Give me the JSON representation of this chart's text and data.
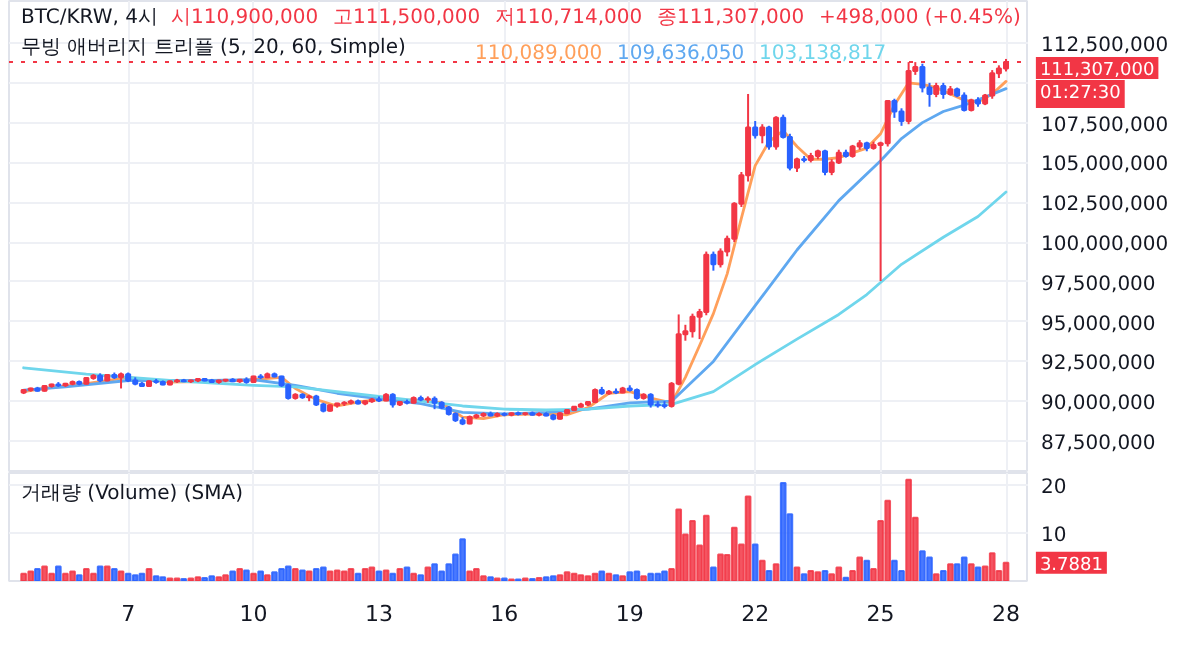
{
  "chart_data": [
    {
      "type": "candlestick",
      "x": [
        4.5,
        4.67,
        4.83,
        5,
        5.17,
        5.33,
        5.5,
        5.67,
        5.83,
        6,
        6.17,
        6.33,
        6.5,
        6.67,
        6.83,
        7,
        7.17,
        7.33,
        7.5,
        7.67,
        7.83,
        8,
        8.17,
        8.33,
        8.5,
        8.67,
        8.83,
        9,
        9.17,
        9.33,
        9.5,
        9.67,
        9.83,
        10,
        10.17,
        10.33,
        10.5,
        10.67,
        10.83,
        11,
        11.17,
        11.33,
        11.5,
        11.67,
        11.83,
        12,
        12.17,
        12.33,
        12.5,
        12.67,
        12.83,
        13,
        13.17,
        13.33,
        13.5,
        13.67,
        13.83,
        14,
        14.17,
        14.33,
        14.5,
        14.67,
        14.83,
        15,
        15.17,
        15.33,
        15.5,
        15.67,
        15.83,
        16,
        16.17,
        16.33,
        16.5,
        16.67,
        16.83,
        17,
        17.17,
        17.33,
        17.5,
        17.67,
        17.83,
        18,
        18.17,
        18.33,
        18.5,
        18.67,
        18.83,
        19,
        19.17,
        19.33,
        19.5,
        19.67,
        19.83,
        20,
        20.17,
        20.33,
        20.5,
        20.67,
        20.83,
        21,
        21.17,
        21.33,
        21.5,
        21.67,
        21.83,
        22,
        22.17,
        22.33,
        22.5,
        22.67,
        22.83,
        23,
        23.17,
        23.33,
        23.5,
        23.67,
        23.83,
        24,
        24.17,
        24.33,
        24.5,
        24.67,
        24.83,
        25,
        25.17,
        25.33,
        25.5,
        25.67,
        25.83,
        26,
        26.17,
        26.33,
        26.5,
        26.67,
        26.83,
        27,
        27.17,
        27.33,
        27.5,
        27.67,
        27.83,
        28
      ],
      "ohlc": [
        [
          90550000,
          90750000,
          90450000,
          90700000
        ],
        [
          90700000,
          90850000,
          90600000,
          90800000
        ],
        [
          90800000,
          90900000,
          90600000,
          90650000
        ],
        [
          90650000,
          91000000,
          90600000,
          90950000
        ],
        [
          90950000,
          91100000,
          90850000,
          91050000
        ],
        [
          91050000,
          91200000,
          90900000,
          91000000
        ],
        [
          91000000,
          91150000,
          90900000,
          91100000
        ],
        [
          91100000,
          91300000,
          91000000,
          91200000
        ],
        [
          91200000,
          91300000,
          91000000,
          91100000
        ],
        [
          91100000,
          91500000,
          91050000,
          91450000
        ],
        [
          91450000,
          91700000,
          91350000,
          91600000
        ],
        [
          91600000,
          91750000,
          91200000,
          91300000
        ],
        [
          91300000,
          91700000,
          91250000,
          91650000
        ],
        [
          91650000,
          91800000,
          91400000,
          91500000
        ],
        [
          91500000,
          91800000,
          90800000,
          91700000
        ],
        [
          91700000,
          91800000,
          91200000,
          91300000
        ],
        [
          91300000,
          91500000,
          91000000,
          91100000
        ],
        [
          91100000,
          91200000,
          90900000,
          90950000
        ],
        [
          90950000,
          91300000,
          90900000,
          91250000
        ],
        [
          91250000,
          91400000,
          91100000,
          91200000
        ],
        [
          91200000,
          91300000,
          91000000,
          91050000
        ],
        [
          91050000,
          91300000,
          91000000,
          91250000
        ],
        [
          91250000,
          91400000,
          91150000,
          91300000
        ],
        [
          91300000,
          91400000,
          91200000,
          91250000
        ],
        [
          91250000,
          91350000,
          91150000,
          91300000
        ],
        [
          91300000,
          91450000,
          91200000,
          91400000
        ],
        [
          91400000,
          91450000,
          91250000,
          91300000
        ],
        [
          91300000,
          91400000,
          91150000,
          91200000
        ],
        [
          91200000,
          91350000,
          91100000,
          91300000
        ],
        [
          91300000,
          91400000,
          91200000,
          91350000
        ],
        [
          91350000,
          91450000,
          91200000,
          91250000
        ],
        [
          91250000,
          91400000,
          91150000,
          91350000
        ],
        [
          91350000,
          91500000,
          91100000,
          91200000
        ],
        [
          91200000,
          91600000,
          91150000,
          91550000
        ],
        [
          91550000,
          91700000,
          91400000,
          91500000
        ],
        [
          91500000,
          91800000,
          91450000,
          91700000
        ],
        [
          91700000,
          91800000,
          91500000,
          91550000
        ],
        [
          91550000,
          91600000,
          90900000,
          91000000
        ],
        [
          91000000,
          91100000,
          90100000,
          90200000
        ],
        [
          90200000,
          90500000,
          90100000,
          90400000
        ],
        [
          90400000,
          90500000,
          90150000,
          90250000
        ],
        [
          90250000,
          90400000,
          90000000,
          90300000
        ],
        [
          90300000,
          90400000,
          89700000,
          89800000
        ],
        [
          89800000,
          89900000,
          89300000,
          89400000
        ],
        [
          89400000,
          89800000,
          89350000,
          89750000
        ],
        [
          89750000,
          89900000,
          89600000,
          89850000
        ],
        [
          89850000,
          90000000,
          89700000,
          89900000
        ],
        [
          89900000,
          90100000,
          89800000,
          90000000
        ],
        [
          90000000,
          90100000,
          89800000,
          89850000
        ],
        [
          89850000,
          90050000,
          89750000,
          90000000
        ],
        [
          90000000,
          90200000,
          89900000,
          90100000
        ],
        [
          90100000,
          90300000,
          89950000,
          90050000
        ],
        [
          90050000,
          90500000,
          90000000,
          90400000
        ],
        [
          90400000,
          90500000,
          89600000,
          89800000
        ],
        [
          89800000,
          90000000,
          89700000,
          89950000
        ],
        [
          89950000,
          90100000,
          89800000,
          89900000
        ],
        [
          89900000,
          90300000,
          89850000,
          90200000
        ],
        [
          90200000,
          90350000,
          90000000,
          90100000
        ],
        [
          90100000,
          90300000,
          89900000,
          90150000
        ],
        [
          90150000,
          90300000,
          89500000,
          89900000
        ],
        [
          89900000,
          90000000,
          89500000,
          89600000
        ],
        [
          89600000,
          89700000,
          89100000,
          89200000
        ],
        [
          89200000,
          89300000,
          88700000,
          88800000
        ],
        [
          88800000,
          89000000,
          88500000,
          88600000
        ],
        [
          88600000,
          89100000,
          88550000,
          89000000
        ],
        [
          89000000,
          89200000,
          88900000,
          89100000
        ],
        [
          89100000,
          89300000,
          89000000,
          89200000
        ],
        [
          89200000,
          89350000,
          89050000,
          89100000
        ],
        [
          89100000,
          89300000,
          89000000,
          89200000
        ],
        [
          89200000,
          89300000,
          89050000,
          89150000
        ],
        [
          89150000,
          89300000,
          89050000,
          89250000
        ],
        [
          89250000,
          89350000,
          89100000,
          89200000
        ],
        [
          89200000,
          89300000,
          89100000,
          89250000
        ],
        [
          89250000,
          89350000,
          89100000,
          89150000
        ],
        [
          89150000,
          89300000,
          89050000,
          89200000
        ],
        [
          89200000,
          89300000,
          89050000,
          89100000
        ],
        [
          89100000,
          89200000,
          88800000,
          88900000
        ],
        [
          88900000,
          89300000,
          88850000,
          89250000
        ],
        [
          89250000,
          89500000,
          89200000,
          89450000
        ],
        [
          89450000,
          89700000,
          89400000,
          89650000
        ],
        [
          89650000,
          89900000,
          89600000,
          89800000
        ],
        [
          89800000,
          90000000,
          89700000,
          89950000
        ],
        [
          89950000,
          90800000,
          89900000,
          90700000
        ],
        [
          90700000,
          90900000,
          90400000,
          90500000
        ],
        [
          90500000,
          90700000,
          90400000,
          90600000
        ],
        [
          90600000,
          90800000,
          90450000,
          90550000
        ],
        [
          90550000,
          90900000,
          90500000,
          90800000
        ],
        [
          90800000,
          91000000,
          90600000,
          90700000
        ],
        [
          90700000,
          90800000,
          90100000,
          90200000
        ],
        [
          90200000,
          90500000,
          90100000,
          90400000
        ],
        [
          90400000,
          90500000,
          89600000,
          89800000
        ],
        [
          89800000,
          90000000,
          89600000,
          89750000
        ],
        [
          89750000,
          90000000,
          89550000,
          89700000
        ],
        [
          89700000,
          91200000,
          89600000,
          91100000
        ],
        [
          91100000,
          95450000,
          91000000,
          94200000
        ],
        [
          94200000,
          94800000,
          93800000,
          94400000
        ],
        [
          94400000,
          95500000,
          94000000,
          95300000
        ],
        [
          95300000,
          95800000,
          93900000,
          95600000
        ],
        [
          95600000,
          99400000,
          95400000,
          99200000
        ],
        [
          99200000,
          99400000,
          98200000,
          98600000
        ],
        [
          98600000,
          99600000,
          98400000,
          99400000
        ],
        [
          99400000,
          100400000,
          99100000,
          100200000
        ],
        [
          100200000,
          102500000,
          100000000,
          102400000
        ],
        [
          102400000,
          104400000,
          102200000,
          104200000
        ],
        [
          104200000,
          109300000,
          103800000,
          107200000
        ],
        [
          107200000,
          107600000,
          106500000,
          106700000
        ],
        [
          106700000,
          107400000,
          106200000,
          107200000
        ],
        [
          107200000,
          107300000,
          105800000,
          106000000
        ],
        [
          106000000,
          107900000,
          105800000,
          107800000
        ],
        [
          107800000,
          108000000,
          106500000,
          106600000
        ],
        [
          106600000,
          106800000,
          104500000,
          104670000
        ],
        [
          104670000,
          105300000,
          104400000,
          105200000
        ],
        [
          105200000,
          105400000,
          105000000,
          105150000
        ],
        [
          105150000,
          105600000,
          105000000,
          105400000
        ],
        [
          105400000,
          105800000,
          105200000,
          105700000
        ],
        [
          105700000,
          105800000,
          104200000,
          104400000
        ],
        [
          104400000,
          105200000,
          104200000,
          105000000
        ],
        [
          105000000,
          105800000,
          104900000,
          105600000
        ],
        [
          105600000,
          105800000,
          105300000,
          105400000
        ],
        [
          105400000,
          106100000,
          105300000,
          106000000
        ],
        [
          106000000,
          106400000,
          105800000,
          106200000
        ],
        [
          106200000,
          106300000,
          105700000,
          105900000
        ],
        [
          105900000,
          106300000,
          105800000,
          106100000
        ],
        [
          106100000,
          106300000,
          97550000,
          106200000
        ],
        [
          106200000,
          108900000,
          106000000,
          108860000
        ],
        [
          108860000,
          109000000,
          107800000,
          108200000
        ],
        [
          108200000,
          108400000,
          107300000,
          107600000
        ],
        [
          107600000,
          111300000,
          107400000,
          110740000
        ],
        [
          110740000,
          111300000,
          110500000,
          111000000
        ],
        [
          111000000,
          111200000,
          109400000,
          109700000
        ],
        [
          109700000,
          110000000,
          108500000,
          109300000
        ],
        [
          109300000,
          110000000,
          109100000,
          109800000
        ],
        [
          109800000,
          110000000,
          109000000,
          109300000
        ],
        [
          109300000,
          109800000,
          109200000,
          109600000
        ],
        [
          109600000,
          109700000,
          109100000,
          109200000
        ],
        [
          109200000,
          109400000,
          108200000,
          108300000
        ],
        [
          108300000,
          109000000,
          108200000,
          108900000
        ],
        [
          108900000,
          109100000,
          108500000,
          108700000
        ],
        [
          108700000,
          109300000,
          108600000,
          109200000
        ],
        [
          109200000,
          110800000,
          109000000,
          110600000
        ],
        [
          110600000,
          111100000,
          110300000,
          110900000
        ],
        [
          110900000,
          111500000,
          110714000,
          111307000
        ]
      ],
      "colors": [
        "#f23645",
        "#f23645",
        "#2962ff",
        "#f23645",
        "#f23645",
        "#2962ff",
        "#f23645",
        "#f23645",
        "#2962ff",
        "#f23645",
        "#f23645",
        "#2962ff",
        "#f23645",
        "#2962ff",
        "#f23645",
        "#2962ff",
        "#2962ff",
        "#2962ff",
        "#f23645",
        "#2962ff",
        "#2962ff",
        "#f23645",
        "#f23645",
        "#2962ff",
        "#f23645",
        "#f23645",
        "#2962ff",
        "#2962ff",
        "#f23645",
        "#f23645",
        "#2962ff",
        "#f23645",
        "#2962ff",
        "#f23645",
        "#2962ff",
        "#f23645",
        "#2962ff",
        "#2962ff",
        "#2962ff",
        "#f23645",
        "#2962ff",
        "#f23645",
        "#2962ff",
        "#2962ff",
        "#f23645",
        "#f23645",
        "#f23645",
        "#f23645",
        "#2962ff",
        "#f23645",
        "#f23645",
        "#2962ff",
        "#f23645",
        "#2962ff",
        "#f23645",
        "#2962ff",
        "#f23645",
        "#2962ff",
        "#f23645",
        "#2962ff",
        "#2962ff",
        "#2962ff",
        "#2962ff",
        "#2962ff",
        "#f23645",
        "#f23645",
        "#f23645",
        "#2962ff",
        "#f23645",
        "#2962ff",
        "#f23645",
        "#2962ff",
        "#f23645",
        "#2962ff",
        "#f23645",
        "#2962ff",
        "#2962ff",
        "#f23645",
        "#f23645",
        "#f23645",
        "#f23645",
        "#f23645",
        "#f23645",
        "#2962ff",
        "#f23645",
        "#2962ff",
        "#f23645",
        "#2962ff",
        "#2962ff",
        "#f23645",
        "#2962ff",
        "#2962ff",
        "#2962ff",
        "#f23645",
        "#f23645",
        "#f23645",
        "#f23645",
        "#f23645",
        "#f23645",
        "#2962ff",
        "#f23645",
        "#f23645",
        "#f23645",
        "#f23645",
        "#f23645",
        "#2962ff",
        "#f23645",
        "#2962ff",
        "#f23645",
        "#2962ff",
        "#2962ff",
        "#f23645",
        "#2962ff",
        "#f23645",
        "#f23645",
        "#2962ff",
        "#f23645",
        "#f23645",
        "#2962ff",
        "#f23645",
        "#f23645",
        "#2962ff",
        "#f23645",
        "#f23645",
        "#f23645",
        "#2962ff",
        "#2962ff",
        "#f23645",
        "#f23645",
        "#2962ff",
        "#2962ff",
        "#f23645",
        "#2962ff",
        "#f23645",
        "#2962ff",
        "#2962ff",
        "#f23645",
        "#2962ff",
        "#f23645",
        "#f23645",
        "#f23645",
        "#f23645"
      ],
      "series": [
        {
          "type": "line",
          "color": "#ff9f5a",
          "x": [
            4.5,
            5,
            6,
            7,
            8,
            9,
            10,
            10.67,
            11,
            11.5,
            12,
            12.5,
            13,
            14,
            14.5,
            15,
            15.5,
            16,
            17,
            17.5,
            18,
            18.5,
            19,
            19.5,
            20,
            20.33,
            20.67,
            21,
            21.33,
            21.67,
            22,
            22.33,
            22.67,
            23,
            23.33,
            23.67,
            24,
            24.33,
            24.67,
            25,
            25.33,
            25.67,
            26,
            26.33,
            26.67,
            27,
            27.33,
            27.67,
            28
          ],
          "values": [
            90600000,
            90800000,
            91100000,
            91500000,
            91200000,
            91250000,
            91350000,
            91500000,
            90800000,
            90100000,
            89700000,
            89950000,
            90100000,
            90050000,
            89900000,
            89000000,
            88900000,
            89150000,
            89200000,
            89150000,
            89600000,
            90500000,
            90600000,
            90200000,
            89900000,
            91500000,
            93500000,
            95500000,
            98000000,
            101500000,
            104800000,
            106300000,
            107000000,
            106000000,
            105200000,
            105200000,
            105300000,
            105600000,
            105900000,
            106800000,
            108600000,
            110000000,
            109900000,
            109700000,
            109300000,
            108900000,
            108800000,
            109300000,
            110089000
          ]
        },
        {
          "type": "line",
          "color": "#5fa8f0",
          "x": [
            4.5,
            5.5,
            7,
            8,
            9,
            10,
            11,
            12,
            13,
            14,
            15,
            16,
            17,
            18,
            19,
            20,
            21,
            22,
            23,
            24,
            25,
            25.5,
            26,
            26.5,
            27,
            27.5,
            28
          ],
          "values": [
            90700000,
            90900000,
            91300000,
            91300000,
            91300000,
            91350000,
            91000000,
            90500000,
            90150000,
            89850000,
            89300000,
            89200000,
            89300000,
            89500000,
            89900000,
            90000000,
            92500000,
            96000000,
            99500000,
            102600000,
            105100000,
            106500000,
            107500000,
            108200000,
            108600000,
            109100000,
            109636050
          ]
        },
        {
          "type": "line",
          "color": "#6fd6ec",
          "x": [
            4.5,
            6,
            8,
            10,
            11,
            12,
            13,
            14,
            15,
            16,
            17,
            18,
            19,
            20,
            21,
            22,
            23,
            24,
            24.67,
            25.5,
            26.5,
            27.33,
            28
          ],
          "values": [
            92100000,
            91700000,
            91300000,
            91000000,
            90900000,
            90600000,
            90300000,
            90000000,
            89700000,
            89500000,
            89450000,
            89500000,
            89700000,
            89800000,
            90600000,
            92300000,
            93900000,
            95450000,
            96700000,
            98600000,
            100300000,
            101600000,
            103138817
          ]
        }
      ],
      "xlim": [
        4.15,
        28.55
      ],
      "ylim": [
        85490000,
        115140000
      ],
      "xticks": [
        7,
        10,
        13,
        16,
        19,
        22,
        25,
        28
      ],
      "yticks": [
        {
          "value": 87500000,
          "label": "87,500,000"
        },
        {
          "value": 90000000,
          "label": "90,000,000"
        },
        {
          "value": 92500000,
          "label": "92,500,000"
        },
        {
          "value": 95000000,
          "label": "95,000,000"
        },
        {
          "value": 97500000,
          "label": "97,500,000"
        },
        {
          "value": 100000000,
          "label": "100,000,000"
        },
        {
          "value": 102500000,
          "label": "102,500,000"
        },
        {
          "value": 105000000,
          "label": "105,000,000"
        },
        {
          "value": 107500000,
          "label": "107,500,000"
        },
        {
          "value": 110000000,
          "label": null
        },
        {
          "value": 112500000,
          "label": "112,500,000"
        }
      ],
      "tick_labels": "y",
      "grid": true,
      "ref_lines": [
        {
          "axis": "y",
          "value": 111307000,
          "label": "111,307,000",
          "color": "#f23645",
          "line_style": "dotted"
        }
      ],
      "annotations": [
        "BTC/KRW, 4시",
        "시110,900,000",
        "고111,500,000",
        "저110,714,000",
        "종111,307,000",
        "+498,000 (+0.45%)",
        "무빙 애버리지 트리플 (5, 20, 60, Simple)",
        "110,089,000",
        "109,636,050",
        "103,138,817",
        "01:27:30"
      ]
    },
    {
      "type": "bar",
      "x": [
        4.5,
        4.67,
        4.83,
        5,
        5.17,
        5.33,
        5.5,
        5.67,
        5.83,
        6,
        6.17,
        6.33,
        6.5,
        6.67,
        6.83,
        7,
        7.17,
        7.33,
        7.5,
        7.67,
        7.83,
        8,
        8.17,
        8.33,
        8.5,
        8.67,
        8.83,
        9,
        9.17,
        9.33,
        9.5,
        9.67,
        9.83,
        10,
        10.17,
        10.33,
        10.5,
        10.67,
        10.83,
        11,
        11.17,
        11.33,
        11.5,
        11.67,
        11.83,
        12,
        12.17,
        12.33,
        12.5,
        12.67,
        12.83,
        13,
        13.17,
        13.33,
        13.5,
        13.67,
        13.83,
        14,
        14.17,
        14.33,
        14.5,
        14.67,
        14.83,
        15,
        15.17,
        15.33,
        15.5,
        15.67,
        15.83,
        16,
        16.17,
        16.33,
        16.5,
        16.67,
        16.83,
        17,
        17.17,
        17.33,
        17.5,
        17.67,
        17.83,
        18,
        18.17,
        18.33,
        18.5,
        18.67,
        18.83,
        19,
        19.17,
        19.33,
        19.5,
        19.67,
        19.83,
        20,
        20.17,
        20.33,
        20.5,
        20.67,
        20.83,
        21,
        21.17,
        21.33,
        21.5,
        21.67,
        21.83,
        22,
        22.17,
        22.33,
        22.5,
        22.67,
        22.83,
        23,
        23.17,
        23.33,
        23.5,
        23.67,
        23.83,
        24,
        24.17,
        24.33,
        24.5,
        24.67,
        24.83,
        25,
        25.17,
        25.33,
        25.5,
        25.67,
        25.83,
        26,
        26.17,
        26.33,
        26.5,
        26.67,
        26.83,
        27,
        27.17,
        27.33,
        27.5,
        27.67,
        27.83,
        28
      ],
      "values": [
        1.5,
        2,
        2.5,
        3,
        1.5,
        3,
        1.5,
        2,
        1.2,
        2.5,
        1.5,
        3,
        3,
        2.5,
        2,
        1.5,
        1.2,
        1.5,
        2.5,
        1,
        0.8,
        0.5,
        0.5,
        0.4,
        0.5,
        0.8,
        0.6,
        1,
        0.8,
        1.2,
        2,
        2.5,
        2.2,
        1.5,
        2,
        1.2,
        1.8,
        2.5,
        3,
        2.5,
        2.2,
        2,
        2.5,
        2.8,
        2,
        2.2,
        2,
        2.5,
        1.5,
        2.5,
        2.8,
        2,
        2.2,
        1.5,
        2.5,
        2.8,
        1.5,
        1.2,
        2.8,
        3.5,
        2,
        3.5,
        5.5,
        8.7,
        2,
        2.5,
        1,
        0.8,
        0.5,
        0.5,
        0.3,
        0.3,
        0.5,
        0.4,
        0.6,
        0.8,
        1,
        1.2,
        1.8,
        1.5,
        1.2,
        1,
        1.5,
        2,
        1.5,
        1.2,
        1,
        1.8,
        2,
        1,
        1.5,
        1.5,
        2,
        2.5,
        14.9,
        9.7,
        12.5,
        7.4,
        13.6,
        2.8,
        5.5,
        5.4,
        11.1,
        7.6,
        17.6,
        7.6,
        4.2,
        2.1,
        3.5,
        20.4,
        13.9,
        2.8,
        1.4,
        2.1,
        1.8,
        2.1,
        1.4,
        2.8,
        0.7,
        2.1,
        4.9,
        4.2,
        2.5,
        12.5,
        16.7,
        4.2,
        2.1,
        21.1,
        13.2,
        6.2,
        4.9,
        1.4,
        2.1,
        3.5,
        3.5,
        4.9,
        3.5,
        2.8,
        3,
        5.8,
        2.1,
        3.7881
      ],
      "colors": [
        "#f23645",
        "#f23645",
        "#2962ff",
        "#f23645",
        "#f23645",
        "#2962ff",
        "#f23645",
        "#f23645",
        "#2962ff",
        "#f23645",
        "#f23645",
        "#2962ff",
        "#f23645",
        "#2962ff",
        "#f23645",
        "#2962ff",
        "#2962ff",
        "#2962ff",
        "#f23645",
        "#2962ff",
        "#2962ff",
        "#f23645",
        "#f23645",
        "#2962ff",
        "#f23645",
        "#f23645",
        "#2962ff",
        "#2962ff",
        "#f23645",
        "#f23645",
        "#2962ff",
        "#f23645",
        "#2962ff",
        "#f23645",
        "#2962ff",
        "#f23645",
        "#2962ff",
        "#2962ff",
        "#2962ff",
        "#f23645",
        "#2962ff",
        "#f23645",
        "#2962ff",
        "#2962ff",
        "#f23645",
        "#f23645",
        "#f23645",
        "#f23645",
        "#2962ff",
        "#f23645",
        "#f23645",
        "#2962ff",
        "#f23645",
        "#2962ff",
        "#f23645",
        "#2962ff",
        "#f23645",
        "#2962ff",
        "#f23645",
        "#2962ff",
        "#2962ff",
        "#2962ff",
        "#2962ff",
        "#2962ff",
        "#f23645",
        "#f23645",
        "#f23645",
        "#2962ff",
        "#f23645",
        "#2962ff",
        "#f23645",
        "#2962ff",
        "#f23645",
        "#2962ff",
        "#f23645",
        "#2962ff",
        "#2962ff",
        "#f23645",
        "#f23645",
        "#f23645",
        "#f23645",
        "#f23645",
        "#f23645",
        "#2962ff",
        "#f23645",
        "#2962ff",
        "#f23645",
        "#2962ff",
        "#2962ff",
        "#f23645",
        "#2962ff",
        "#2962ff",
        "#2962ff",
        "#f23645",
        "#f23645",
        "#f23645",
        "#f23645",
        "#f23645",
        "#f23645",
        "#2962ff",
        "#f23645",
        "#f23645",
        "#f23645",
        "#f23645",
        "#f23645",
        "#2962ff",
        "#f23645",
        "#2962ff",
        "#f23645",
        "#2962ff",
        "#2962ff",
        "#f23645",
        "#2962ff",
        "#f23645",
        "#f23645",
        "#2962ff",
        "#f23645",
        "#f23645",
        "#2962ff",
        "#f23645",
        "#f23645",
        "#2962ff",
        "#f23645",
        "#f23645",
        "#f23645",
        "#2962ff",
        "#2962ff",
        "#f23645",
        "#f23645",
        "#2962ff",
        "#2962ff",
        "#f23645",
        "#2962ff",
        "#f23645",
        "#2962ff",
        "#2962ff",
        "#f23645",
        "#2962ff",
        "#f23645",
        "#f23645",
        "#f23645",
        "#f23645"
      ],
      "xlim": [
        4.15,
        28.55
      ],
      "ylim": [
        0,
        22.5
      ],
      "xticks": [
        7,
        10,
        13,
        16,
        19,
        22,
        25,
        28
      ],
      "yticks": [
        10,
        20
      ],
      "grid": true,
      "annotations": [
        "거래량 (Volume) (SMA)",
        "3.7881"
      ]
    }
  ]
}
